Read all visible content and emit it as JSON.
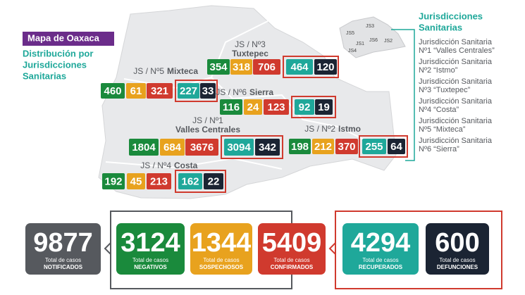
{
  "header": {
    "title": "Mapa de Oaxaca",
    "subtitle": [
      "Distribución por",
      "Jurisdicciones",
      "Sanitarias"
    ]
  },
  "legend": {
    "title": [
      "Jurisdicciones",
      "Sanitarias"
    ],
    "items": [
      {
        "label": "Jurisdicción Sanitaria",
        "name": "Nº1 “Valles Centrales”"
      },
      {
        "label": "Jurisdicción Sanitaria",
        "name": "Nº2 “Istmo”"
      },
      {
        "label": "Jurisdicción Sanitaria",
        "name": "Nº3 “Tuxtepec”"
      },
      {
        "label": "Jurisdicción Sanitaria",
        "name": "Nº4 “Costa”"
      },
      {
        "label": "Jurisdicción Sanitaria",
        "name": "Nº5 “Mixteca”"
      },
      {
        "label": "Jurisdicción Sanitaria",
        "name": "Nº6 “Sierra”"
      }
    ]
  },
  "inset": {
    "labels": [
      "JS5",
      "JS3",
      "JS6",
      "JS1",
      "JS2",
      "JS4"
    ]
  },
  "jurisdictions": [
    {
      "label": "JS / Nº3",
      "name": "Tuxtepec",
      "values": [
        354,
        318,
        706,
        464,
        120
      ]
    },
    {
      "label": "JS / Nº5",
      "name": "Mixteca",
      "values": [
        460,
        61,
        321,
        227,
        33
      ]
    },
    {
      "label": "JS / Nº6",
      "name": "Sierra",
      "values": [
        116,
        24,
        123,
        92,
        19
      ]
    },
    {
      "label": "JS / Nº1",
      "name": "Valles Centrales",
      "values": [
        1804,
        684,
        3676,
        3094,
        342
      ]
    },
    {
      "label": "JS / Nº2",
      "name": "Istmo",
      "values": [
        198,
        212,
        370,
        255,
        64
      ]
    },
    {
      "label": "JS / Nº4",
      "name": "Costa",
      "values": [
        192,
        45,
        213,
        162,
        22
      ]
    }
  ],
  "totals": [
    {
      "value": 9877,
      "line1": "Total de casos",
      "line2": "NOTIFICADOS"
    },
    {
      "value": 3124,
      "line1": "Total de casos",
      "line2": "NEGATIVOS"
    },
    {
      "value": 1344,
      "line1": "Total de casos",
      "line2": "SOSPECHOSOS"
    },
    {
      "value": 5409,
      "line1": "Total de casos",
      "line2": "CONFIRMADOS"
    },
    {
      "value": 4294,
      "line1": "Total de casos",
      "line2": "RECUPERADOS"
    },
    {
      "value": 600,
      "line1": "Total de casos",
      "line2": "DEFUNCIONES"
    }
  ]
}
